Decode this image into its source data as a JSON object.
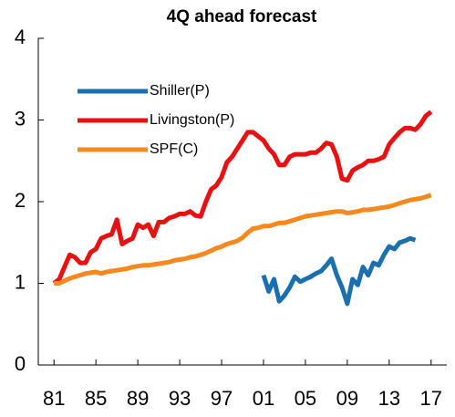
{
  "chart_data": {
    "type": "line",
    "title": "4Q ahead forecast",
    "x": [
      1981,
      1981.5,
      1982,
      1982.5,
      1983,
      1983.5,
      1984,
      1984.5,
      1985,
      1985.5,
      1986,
      1986.5,
      1987,
      1987.5,
      1988,
      1988.5,
      1989,
      1989.5,
      1990,
      1990.5,
      1991,
      1991.5,
      1992,
      1992.5,
      1993,
      1993.5,
      1994,
      1994.5,
      1995,
      1995.5,
      1996,
      1996.5,
      1997,
      1997.5,
      1998,
      1998.5,
      1999,
      1999.5,
      2000,
      2000.5,
      2001,
      2001.5,
      2002,
      2002.5,
      2003,
      2003.5,
      2004,
      2004.5,
      2005,
      2005.5,
      2006,
      2006.5,
      2007,
      2007.5,
      2008,
      2008.5,
      2009,
      2009.5,
      2010,
      2010.5,
      2011,
      2011.5,
      2012,
      2012.5,
      2013,
      2013.5,
      2014,
      2014.5,
      2015,
      2015.5,
      2016,
      2016.5,
      2017
    ],
    "series": [
      {
        "name": "Shiller(P)",
        "color": "#1a6faf",
        "values": [
          null,
          null,
          null,
          null,
          null,
          null,
          null,
          null,
          null,
          null,
          null,
          null,
          null,
          null,
          null,
          null,
          null,
          null,
          null,
          null,
          null,
          null,
          null,
          null,
          null,
          null,
          null,
          null,
          null,
          null,
          null,
          null,
          null,
          null,
          null,
          null,
          null,
          null,
          null,
          null,
          1.1,
          0.9,
          1.05,
          0.78,
          0.85,
          0.95,
          1.08,
          1.02,
          1.05,
          1.08,
          1.12,
          1.15,
          1.22,
          1.3,
          1.1,
          0.95,
          0.75,
          1.05,
          0.98,
          1.2,
          1.1,
          1.25,
          1.22,
          1.35,
          1.45,
          1.42,
          1.5,
          1.52,
          1.55,
          1.53,
          null,
          null,
          null
        ]
      },
      {
        "name": "Livingston(P)",
        "color": "#e81010",
        "values": [
          1.0,
          1.05,
          1.2,
          1.35,
          1.32,
          1.25,
          1.25,
          1.38,
          1.42,
          1.55,
          1.58,
          1.6,
          1.78,
          1.48,
          1.52,
          1.55,
          1.72,
          1.68,
          1.72,
          1.58,
          1.75,
          1.75,
          1.8,
          1.82,
          1.85,
          1.85,
          1.88,
          1.83,
          1.82,
          2.0,
          2.15,
          2.2,
          2.3,
          2.48,
          2.55,
          2.65,
          2.75,
          2.85,
          2.85,
          2.8,
          2.75,
          2.65,
          2.58,
          2.45,
          2.45,
          2.55,
          2.58,
          2.58,
          2.58,
          2.6,
          2.6,
          2.65,
          2.72,
          2.7,
          2.55,
          2.28,
          2.26,
          2.38,
          2.42,
          2.45,
          2.5,
          2.5,
          2.52,
          2.55,
          2.7,
          2.78,
          2.85,
          2.9,
          2.9,
          2.88,
          2.95,
          3.05,
          3.1
        ]
      },
      {
        "name": "SPF(C)",
        "color": "#f5891f",
        "values": [
          1.0,
          1.0,
          1.03,
          1.06,
          1.08,
          1.1,
          1.12,
          1.13,
          1.14,
          1.12,
          1.14,
          1.15,
          1.16,
          1.17,
          1.18,
          1.2,
          1.21,
          1.22,
          1.22,
          1.23,
          1.24,
          1.25,
          1.26,
          1.28,
          1.29,
          1.3,
          1.32,
          1.33,
          1.35,
          1.37,
          1.4,
          1.43,
          1.45,
          1.48,
          1.5,
          1.52,
          1.56,
          1.62,
          1.67,
          1.68,
          1.7,
          1.7,
          1.72,
          1.74,
          1.74,
          1.76,
          1.78,
          1.8,
          1.82,
          1.83,
          1.84,
          1.85,
          1.86,
          1.87,
          1.88,
          1.88,
          1.86,
          1.87,
          1.88,
          1.9,
          1.9,
          1.91,
          1.92,
          1.93,
          1.94,
          1.96,
          1.98,
          2.0,
          2.02,
          2.03,
          2.04,
          2.06,
          2.08
        ]
      }
    ],
    "xlim": [
      1979.5,
      2018.5
    ],
    "xticks": [
      {
        "value": 1981,
        "label": "81"
      },
      {
        "value": 1985,
        "label": "85"
      },
      {
        "value": 1989,
        "label": "89"
      },
      {
        "value": 1993,
        "label": "93"
      },
      {
        "value": 1997,
        "label": "97"
      },
      {
        "value": 2001,
        "label": "01"
      },
      {
        "value": 2005,
        "label": "05"
      },
      {
        "value": 2009,
        "label": "09"
      },
      {
        "value": 2013,
        "label": "13"
      },
      {
        "value": 2017,
        "label": "17"
      }
    ],
    "ylim": [
      0,
      4
    ],
    "yticks": [
      0,
      1,
      2,
      3,
      4
    ],
    "legend": "upper left"
  }
}
